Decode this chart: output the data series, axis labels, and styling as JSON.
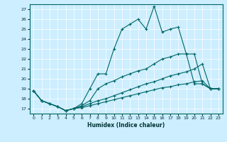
{
  "xlabel": "Humidex (Indice chaleur)",
  "bg_color": "#cceeff",
  "line_color": "#006666",
  "grid_color": "#ffffff",
  "xlim": [
    -0.5,
    23.5
  ],
  "ylim": [
    16.5,
    27.5
  ],
  "xticks": [
    0,
    1,
    2,
    3,
    4,
    5,
    6,
    7,
    8,
    9,
    10,
    11,
    12,
    13,
    14,
    15,
    16,
    17,
    18,
    19,
    20,
    21,
    22,
    23
  ],
  "yticks": [
    17,
    18,
    19,
    20,
    21,
    22,
    23,
    24,
    25,
    26,
    27
  ],
  "series": [
    {
      "x": [
        0,
        1,
        2,
        3,
        4,
        5,
        6,
        7,
        8,
        9,
        10,
        11,
        12,
        13,
        14,
        15,
        16,
        17,
        18,
        19,
        20,
        21,
        22,
        23
      ],
      "y": [
        18.8,
        17.8,
        17.5,
        17.2,
        16.8,
        17.0,
        17.5,
        19.0,
        20.5,
        20.5,
        23.0,
        25.0,
        25.5,
        26.0,
        25.0,
        27.3,
        24.7,
        25.0,
        25.2,
        22.5,
        22.5,
        19.5,
        19.0,
        19.0
      ]
    },
    {
      "x": [
        0,
        1,
        2,
        3,
        4,
        5,
        6,
        7,
        8,
        9,
        10,
        11,
        12,
        13,
        14,
        15,
        16,
        17,
        18,
        19,
        20,
        21,
        22,
        23
      ],
      "y": [
        18.8,
        17.8,
        17.5,
        17.2,
        16.8,
        17.0,
        17.3,
        17.8,
        19.0,
        19.5,
        19.8,
        20.2,
        20.5,
        20.8,
        21.0,
        21.5,
        22.0,
        22.2,
        22.5,
        22.5,
        19.5,
        19.5,
        19.0,
        19.0
      ]
    },
    {
      "x": [
        0,
        1,
        2,
        3,
        4,
        5,
        6,
        7,
        8,
        9,
        10,
        11,
        12,
        13,
        14,
        15,
        16,
        17,
        18,
        19,
        20,
        21,
        22,
        23
      ],
      "y": [
        18.8,
        17.8,
        17.5,
        17.2,
        16.8,
        17.0,
        17.2,
        17.5,
        17.8,
        18.0,
        18.3,
        18.6,
        18.9,
        19.2,
        19.5,
        19.7,
        20.0,
        20.3,
        20.5,
        20.7,
        21.0,
        21.5,
        19.0,
        19.0
      ]
    },
    {
      "x": [
        0,
        1,
        2,
        3,
        4,
        5,
        6,
        7,
        8,
        9,
        10,
        11,
        12,
        13,
        14,
        15,
        16,
        17,
        18,
        19,
        20,
        21,
        22,
        23
      ],
      "y": [
        18.8,
        17.8,
        17.5,
        17.2,
        16.8,
        17.0,
        17.1,
        17.3,
        17.5,
        17.7,
        17.9,
        18.1,
        18.3,
        18.5,
        18.7,
        18.9,
        19.1,
        19.2,
        19.4,
        19.5,
        19.7,
        19.8,
        19.0,
        19.0
      ]
    }
  ]
}
